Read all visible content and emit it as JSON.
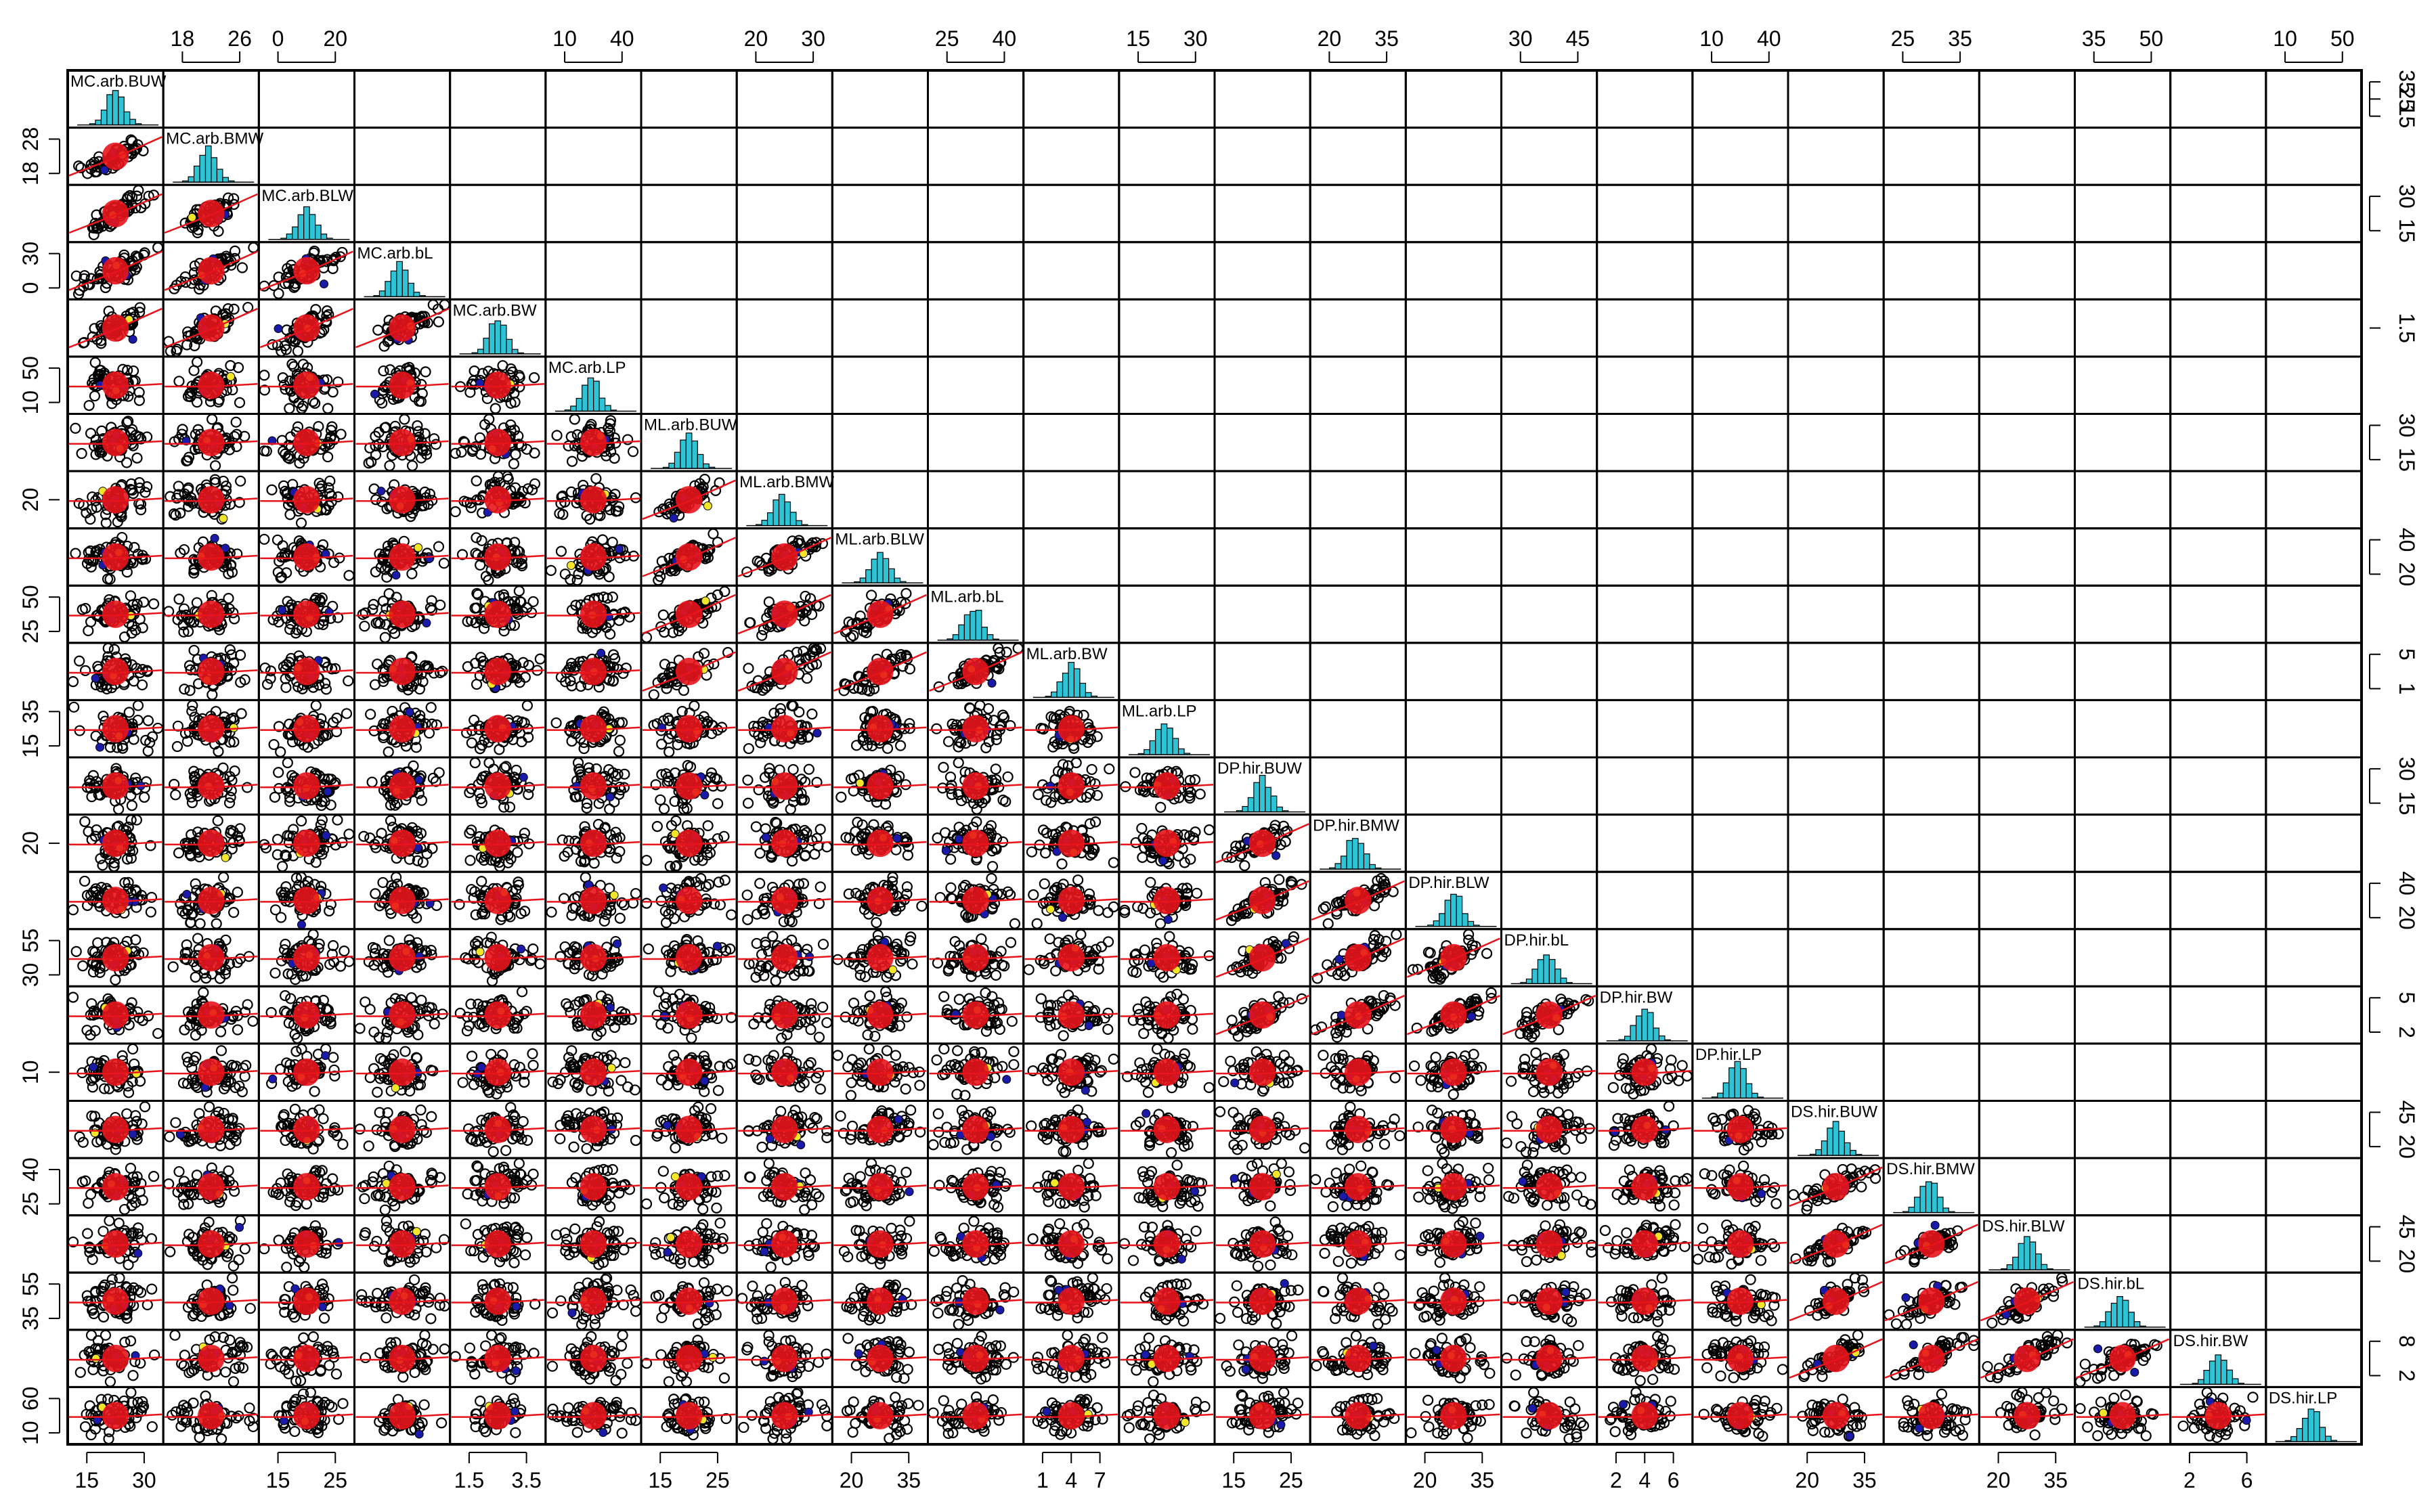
{
  "chart_data": {
    "type": "scatter",
    "subtype": "scatterplot-matrix",
    "title": "",
    "variables": [
      "MC.arb.BUW",
      "MC.arb.BMW",
      "MC.arb.BLW",
      "MC.arb.bL",
      "MC.arb.BW",
      "MC.arb.LP",
      "ML.arb.BUW",
      "ML.arb.BMW",
      "ML.arb.BLW",
      "ML.arb.bL",
      "ML.arb.BW",
      "ML.arb.LP",
      "DP.hir.BUW",
      "DP.hir.BMW",
      "DP.hir.BLW",
      "DP.hir.bL",
      "DP.hir.BW",
      "DP.hir.LP",
      "DS.hir.BUW",
      "DS.hir.BMW",
      "DS.hir.BLW",
      "DS.hir.bL",
      "DS.hir.BW",
      "DS.hir.LP"
    ],
    "diagonal": "histogram",
    "lower_panels": "scatter with smoothing line",
    "upper_panels": "correlation values (too small to read)",
    "colors": {
      "histogram": "#2ec4d6",
      "points": "#000000",
      "centroid": "#e8141b",
      "smooth_line": "#e8141b",
      "group_b": "#1a1aa8",
      "group_c": "#f2e62b"
    },
    "top_axis": [
      {
        "col": 1,
        "ticks": [
          "18",
          "26"
        ]
      },
      {
        "col": 2,
        "ticks": [
          "0",
          "20"
        ]
      },
      {
        "col": 5,
        "ticks": [
          "10",
          "40"
        ]
      },
      {
        "col": 7,
        "ticks": [
          "20",
          "30"
        ]
      },
      {
        "col": 9,
        "ticks": [
          "25",
          "40"
        ]
      },
      {
        "col": 11,
        "ticks": [
          "15",
          "30"
        ]
      },
      {
        "col": 13,
        "ticks": [
          "20",
          "35"
        ]
      },
      {
        "col": 15,
        "ticks": [
          "30",
          "45"
        ]
      },
      {
        "col": 17,
        "ticks": [
          "10",
          "40"
        ]
      },
      {
        "col": 19,
        "ticks": [
          "25",
          "35"
        ]
      },
      {
        "col": 21,
        "ticks": [
          "35",
          "50"
        ]
      },
      {
        "col": 23,
        "ticks": [
          "10",
          "50"
        ]
      }
    ],
    "bottom_axis": [
      {
        "col": 0,
        "ticks": [
          "15",
          "30"
        ]
      },
      {
        "col": 2,
        "ticks": [
          "15",
          "25"
        ]
      },
      {
        "col": 4,
        "ticks": [
          "1.5",
          "3.5"
        ]
      },
      {
        "col": 6,
        "ticks": [
          "15",
          "25"
        ]
      },
      {
        "col": 8,
        "ticks": [
          "20",
          "35"
        ]
      },
      {
        "col": 10,
        "ticks": [
          "1",
          "4",
          "7"
        ]
      },
      {
        "col": 12,
        "ticks": [
          "15",
          "25"
        ]
      },
      {
        "col": 14,
        "ticks": [
          "20",
          "35"
        ]
      },
      {
        "col": 16,
        "ticks": [
          "2",
          "4",
          "6"
        ]
      },
      {
        "col": 18,
        "ticks": [
          "20",
          "35"
        ]
      },
      {
        "col": 20,
        "ticks": [
          "20",
          "35"
        ]
      },
      {
        "col": 22,
        "ticks": [
          "2",
          "6"
        ]
      }
    ],
    "left_axis": [
      {
        "row": 1,
        "ticks": [
          "18",
          "28"
        ]
      },
      {
        "row": 3,
        "ticks": [
          "0",
          "30"
        ]
      },
      {
        "row": 5,
        "ticks": [
          "10",
          "50"
        ]
      },
      {
        "row": 7,
        "ticks": [
          "20"
        ]
      },
      {
        "row": 9,
        "ticks": [
          "25",
          "50"
        ]
      },
      {
        "row": 11,
        "ticks": [
          "15",
          "35"
        ]
      },
      {
        "row": 13,
        "ticks": [
          "20"
        ]
      },
      {
        "row": 15,
        "ticks": [
          "30",
          "55"
        ]
      },
      {
        "row": 17,
        "ticks": [
          "10"
        ]
      },
      {
        "row": 19,
        "ticks": [
          "25",
          "40"
        ]
      },
      {
        "row": 21,
        "ticks": [
          "35",
          "55"
        ]
      },
      {
        "row": 23,
        "ticks": [
          "10",
          "60"
        ]
      }
    ],
    "right_axis": [
      {
        "row": 0,
        "ticks": [
          "15",
          "25",
          "35"
        ]
      },
      {
        "row": 2,
        "ticks": [
          "15",
          "30"
        ]
      },
      {
        "row": 4,
        "ticks": [
          "1.5"
        ]
      },
      {
        "row": 6,
        "ticks": [
          "15",
          "30"
        ]
      },
      {
        "row": 8,
        "ticks": [
          "20",
          "40"
        ]
      },
      {
        "row": 10,
        "ticks": [
          "1",
          "5"
        ]
      },
      {
        "row": 12,
        "ticks": [
          "15",
          "30"
        ]
      },
      {
        "row": 14,
        "ticks": [
          "20",
          "40"
        ]
      },
      {
        "row": 16,
        "ticks": [
          "2",
          "5"
        ]
      },
      {
        "row": 18,
        "ticks": [
          "20",
          "45"
        ]
      },
      {
        "row": 20,
        "ticks": [
          "20",
          "45"
        ]
      },
      {
        "row": 22,
        "ticks": [
          "2",
          "8"
        ]
      }
    ]
  }
}
